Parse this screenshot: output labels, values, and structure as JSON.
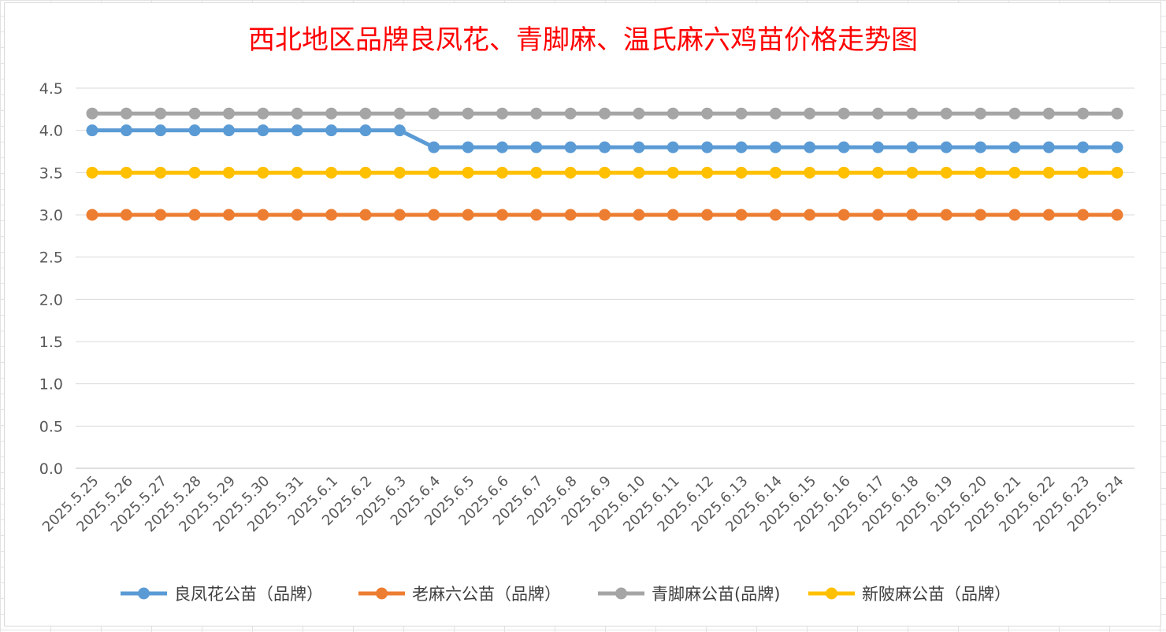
{
  "chart_data": {
    "type": "line",
    "title": "西北地区品牌良凤花、青脚麻、温氏麻六鸡苗价格走势图",
    "xlabel": "",
    "ylabel": "",
    "ylim": [
      0,
      4.5
    ],
    "yticks": [
      "0.0",
      "0.5",
      "1.0",
      "1.5",
      "2.0",
      "2.5",
      "3.0",
      "3.5",
      "4.0",
      "4.5"
    ],
    "grid": true,
    "legend_position": "bottom",
    "categories": [
      "2025.5.25",
      "2025.5.26",
      "2025.5.27",
      "2025.5.28",
      "2025.5.29",
      "2025.5.30",
      "2025.5.31",
      "2025.6.1",
      "2025.6.2",
      "2025.6.3",
      "2025.6.4",
      "2025.6.5",
      "2025.6.6",
      "2025.6.7",
      "2025.6.8",
      "2025.6.9",
      "2025.6.10",
      "2025.6.11",
      "2025.6.12",
      "2025.6.13",
      "2025.6.14",
      "2025.6.15",
      "2025.6.16",
      "2025.6.17",
      "2025.6.18",
      "2025.6.19",
      "2025.6.20",
      "2025.6.21",
      "2025.6.22",
      "2025.6.23",
      "2025.6.24"
    ],
    "series": [
      {
        "name": "良凤花公苗（品牌）",
        "color": "#5b9bd5",
        "values": [
          4.0,
          4.0,
          4.0,
          4.0,
          4.0,
          4.0,
          4.0,
          4.0,
          4.0,
          4.0,
          3.8,
          3.8,
          3.8,
          3.8,
          3.8,
          3.8,
          3.8,
          3.8,
          3.8,
          3.8,
          3.8,
          3.8,
          3.8,
          3.8,
          3.8,
          3.8,
          3.8,
          3.8,
          3.8,
          3.8,
          3.8
        ]
      },
      {
        "name": "老麻六公苗（品牌）",
        "color": "#ed7d31",
        "values": [
          3.0,
          3.0,
          3.0,
          3.0,
          3.0,
          3.0,
          3.0,
          3.0,
          3.0,
          3.0,
          3.0,
          3.0,
          3.0,
          3.0,
          3.0,
          3.0,
          3.0,
          3.0,
          3.0,
          3.0,
          3.0,
          3.0,
          3.0,
          3.0,
          3.0,
          3.0,
          3.0,
          3.0,
          3.0,
          3.0,
          3.0
        ]
      },
      {
        "name": "青脚麻公苗(品牌)",
        "color": "#a5a5a5",
        "values": [
          4.2,
          4.2,
          4.2,
          4.2,
          4.2,
          4.2,
          4.2,
          4.2,
          4.2,
          4.2,
          4.2,
          4.2,
          4.2,
          4.2,
          4.2,
          4.2,
          4.2,
          4.2,
          4.2,
          4.2,
          4.2,
          4.2,
          4.2,
          4.2,
          4.2,
          4.2,
          4.2,
          4.2,
          4.2,
          4.2,
          4.2
        ]
      },
      {
        "name": "新陂麻公苗（品牌）",
        "color": "#ffc000",
        "values": [
          3.5,
          3.5,
          3.5,
          3.5,
          3.5,
          3.5,
          3.5,
          3.5,
          3.5,
          3.5,
          3.5,
          3.5,
          3.5,
          3.5,
          3.5,
          3.5,
          3.5,
          3.5,
          3.5,
          3.5,
          3.5,
          3.5,
          3.5,
          3.5,
          3.5,
          3.5,
          3.5,
          3.5,
          3.5,
          3.5,
          3.5
        ]
      }
    ]
  }
}
